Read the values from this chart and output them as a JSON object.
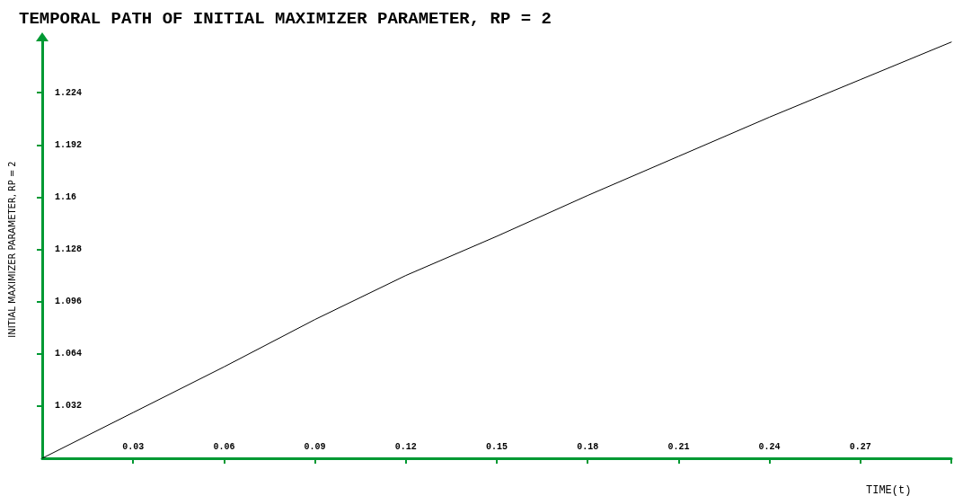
{
  "chart_data": {
    "type": "line",
    "title": "TEMPORAL PATH OF INITIAL MAXIMIZER PARAMETER, RP = 2",
    "xlabel": "TIME(t)",
    "ylabel": "INITIAL MAXIMIZER PARAMETER, RP = 2",
    "x": [
      0,
      0.03,
      0.06,
      0.09,
      0.12,
      0.15,
      0.18,
      0.21,
      0.24,
      0.27,
      0.3
    ],
    "series": [
      {
        "color": "#000000",
        "values": [
          1.0,
          1.028,
          1.056,
          1.085,
          1.112,
          1.136,
          1.161,
          1.185,
          1.209,
          1.232,
          1.255
        ]
      }
    ],
    "xlim": [
      0,
      0.3
    ],
    "ylim": [
      1,
      1.256
    ],
    "xticks": [
      0.03,
      0.06,
      0.09,
      0.12,
      0.15,
      0.18,
      0.21,
      0.24,
      0.27,
      {
        "value": 0.3,
        "label": null
      }
    ],
    "yticks": [
      1.032,
      1.064,
      1.096,
      1.128,
      1.16,
      1.192,
      1.224
    ],
    "grid": false,
    "marker": "none",
    "line_style": "solid"
  }
}
